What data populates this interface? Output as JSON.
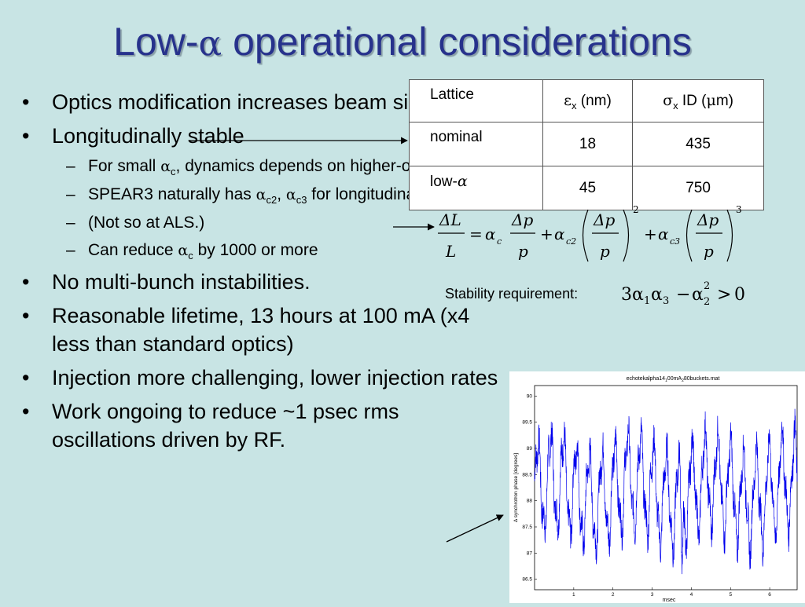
{
  "title": {
    "prefix": "Low-",
    "alpha": "α",
    "suffix": " operational considerations"
  },
  "bullets": {
    "b1": "Optics modification increases beam size",
    "b2": "Longitudinally stable",
    "sub": {
      "s1_pre": "For small ",
      "s1_sym": "α",
      "s1_sub": "c",
      "s1_post": ", dynamics depends on higher-order terms",
      "s2_pre": "SPEAR3 naturally has ",
      "s2_sym1": "α",
      "s2_sub1": "c2",
      "s2_mid": ", ",
      "s2_sym2": "α",
      "s2_sub2": "c3",
      "s2_post": " for longitudinal stability.",
      "s3": "(Not so at ALS.)",
      "s4_pre": "Can reduce ",
      "s4_sym": "α",
      "s4_sub": "c",
      "s4_post": " by 1000 or more"
    },
    "b3": "No multi-bunch instabilities.",
    "b4": "Reasonable lifetime, 13 hours at 100 mA (x4 less than standard optics)",
    "b5": "Injection more challenging, lower injection rates",
    "b6": "Work ongoing to reduce ~1 psec rms oscillations driven by RF."
  },
  "table": {
    "h_lattice": "Lattice",
    "h_eps_sym": "ε",
    "h_eps_sub": "x",
    "h_eps_unit": " (nm)",
    "h_sig_sym": "σ",
    "h_sig_sub": "x",
    "h_sig_mid": " ID (",
    "h_sig_mu": "μ",
    "h_sig_unit": "m)",
    "rows": [
      {
        "lattice": "nominal",
        "eps": "18",
        "sigma": "435"
      },
      {
        "lattice_pre": "low-",
        "lattice_sym": "α",
        "eps": "45",
        "sigma": "750"
      }
    ]
  },
  "equation": {
    "dL": "ΔL",
    "L": "L",
    "eq": "=",
    "alpha": "α",
    "c": "c",
    "c2": "c2",
    "c3": "c3",
    "dp": "Δp",
    "p": "p",
    "plus": "+",
    "pow2": "2",
    "pow3": "3"
  },
  "stability": {
    "label": "Stability requirement:",
    "three": "3",
    "alpha": "α",
    "one": "1",
    "three_sub": "3",
    "minus": "−",
    "two": "2",
    "two_sup": "2",
    "gt": ">",
    "zero": "0"
  },
  "chart_data": {
    "type": "line",
    "title": "echotekalpha14_100mA_80buckets.mat",
    "title_parts": {
      "a": "echotekalpha14",
      "s1": "1",
      "b": "00mA",
      "s2": "2",
      "c": "80buckets.mat"
    },
    "xlabel": "msec",
    "ylabel": "Δ synchrotron phase [degrees]",
    "xlim": [
      0,
      6.7
    ],
    "ylim": [
      86.3,
      90.2
    ],
    "xticks": [
      "1",
      "2",
      "3",
      "4",
      "5",
      "6"
    ],
    "yticks": [
      "86.5",
      "87",
      "87.5",
      "88",
      "88.5",
      "89",
      "89.5",
      "90"
    ],
    "series": [
      {
        "color": "#0000ee",
        "note": "noisy oscillation ~3 per msec, amplitude ~1 deg around 88.2, narrow dip near 3.75 msec"
      }
    ],
    "grid": false
  }
}
